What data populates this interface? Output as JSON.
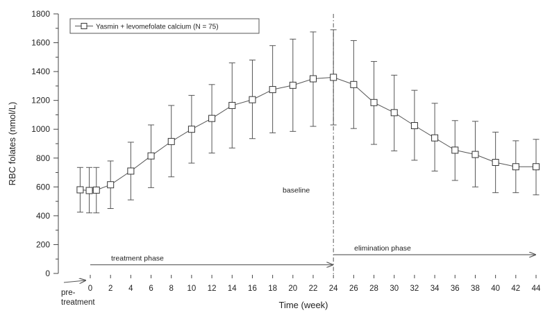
{
  "chart_data": {
    "type": "line",
    "title": "",
    "xlabel": "Time (week)",
    "ylabel": "RBC folates (nmol/L)",
    "xlim": [
      -1,
      44
    ],
    "ylim": [
      0,
      1800
    ],
    "y_ticks": [
      0,
      200,
      400,
      600,
      800,
      1000,
      1200,
      1400,
      1600,
      1800
    ],
    "x_ticks": [
      0,
      2,
      4,
      6,
      8,
      10,
      12,
      14,
      16,
      18,
      20,
      22,
      24,
      26,
      28,
      30,
      32,
      34,
      36,
      38,
      40,
      42,
      44
    ],
    "pre_treatment_label": [
      "pre-",
      "treatment"
    ],
    "legend": {
      "position": "top-left",
      "entries": [
        "Yasmin + levomefolate calcium (N = 75)"
      ]
    },
    "series": [
      {
        "name": "Yasmin + levomefolate calcium (N = 75)",
        "marker": "open-square",
        "points": [
          {
            "x": -1,
            "y": 580,
            "low": 425,
            "high": 735
          },
          {
            "x": -0.1,
            "y": 575,
            "low": 420,
            "high": 735
          },
          {
            "x": 0.6,
            "y": 578,
            "low": 420,
            "high": 735
          },
          {
            "x": 2,
            "y": 615,
            "low": 450,
            "high": 780
          },
          {
            "x": 4,
            "y": 710,
            "low": 510,
            "high": 910
          },
          {
            "x": 6,
            "y": 815,
            "low": 595,
            "high": 1030
          },
          {
            "x": 8,
            "y": 915,
            "low": 670,
            "high": 1165
          },
          {
            "x": 10,
            "y": 1000,
            "low": 765,
            "high": 1235
          },
          {
            "x": 12,
            "y": 1075,
            "low": 835,
            "high": 1310
          },
          {
            "x": 14,
            "y": 1165,
            "low": 870,
            "high": 1460
          },
          {
            "x": 16,
            "y": 1205,
            "low": 935,
            "high": 1480
          },
          {
            "x": 18,
            "y": 1275,
            "low": 975,
            "high": 1580
          },
          {
            "x": 20,
            "y": 1305,
            "low": 985,
            "high": 1625
          },
          {
            "x": 22,
            "y": 1350,
            "low": 1020,
            "high": 1675
          },
          {
            "x": 24,
            "y": 1360,
            "low": 1030,
            "high": 1690
          },
          {
            "x": 26,
            "y": 1310,
            "low": 1005,
            "high": 1615
          },
          {
            "x": 28,
            "y": 1185,
            "low": 895,
            "high": 1470
          },
          {
            "x": 30,
            "y": 1115,
            "low": 850,
            "high": 1375
          },
          {
            "x": 32,
            "y": 1025,
            "low": 785,
            "high": 1270
          },
          {
            "x": 34,
            "y": 940,
            "low": 710,
            "high": 1180
          },
          {
            "x": 36,
            "y": 855,
            "low": 645,
            "high": 1060
          },
          {
            "x": 38,
            "y": 825,
            "low": 600,
            "high": 1055
          },
          {
            "x": 40,
            "y": 770,
            "low": 560,
            "high": 980
          },
          {
            "x": 42,
            "y": 740,
            "low": 560,
            "high": 920
          },
          {
            "x": 44,
            "y": 740,
            "low": 545,
            "high": 930
          }
        ]
      }
    ],
    "reference_lines": [
      {
        "x": 24,
        "label": "baseline",
        "style": "dash-dot"
      }
    ],
    "annotations": [
      {
        "label": "treatment phase",
        "x_start": 0,
        "x_end": 24,
        "y": 60
      },
      {
        "label": "elimination phase",
        "x_start": 24,
        "x_end": 44,
        "y": 130
      }
    ],
    "grid": false
  }
}
